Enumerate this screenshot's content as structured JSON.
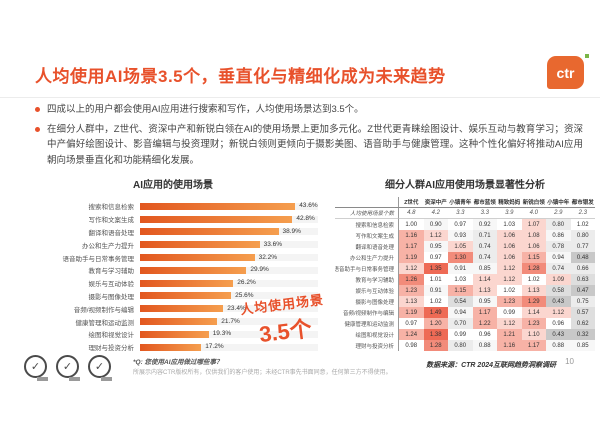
{
  "slide": {
    "title": "人均使用AI场景3.5个，垂直化与精细化成为未来趋势",
    "logo_text": "ctr",
    "page_number": "10",
    "accent_color": "#E8512B"
  },
  "bullets": {
    "item1": "四成以上的用户都会使用AI应用进行搜索和写作，人均使用场景达到3.5个。",
    "item2": "在细分人群中，Z世代、资深中产和新锐白领在AI的使用场景上更加多元化。Z世代更青睐绘图设计、娱乐互动与教育学习；资深中产偏好绘图设计、影音编辑与投资理财；新锐白领则更倾向于摄影美图、语音助手与健康管理。这种个性化偏好将推动AI应用朝向场景垂直化和功能精细化发展。"
  },
  "chart_data": [
    {
      "type": "bar",
      "title": "AI应用的使用场景",
      "orientation": "horizontal",
      "unit": "%",
      "xlim": [
        0,
        50
      ],
      "grid": false,
      "bar_color_start": "#E2571F",
      "bar_color_end": "#F59E4E",
      "categories": [
        "搜索和信息检索",
        "写作和文案生成",
        "翻译和语音处理",
        "办公和生产力提升",
        "语音助手与日常事务管理",
        "教育与学习辅助",
        "娱乐与互动体验",
        "摄影与图像处理",
        "音频/视频制作与编辑",
        "健康管理和运动监测",
        "绘图和视觉设计",
        "理财与投资分析"
      ],
      "values": [
        43.6,
        42.8,
        38.9,
        33.6,
        32.2,
        29.9,
        26.2,
        25.6,
        23.4,
        21.7,
        19.3,
        17.2
      ],
      "value_labels": [
        "43.6%",
        "42.8%",
        "38.9%",
        "33.6%",
        "32.2%",
        "29.9%",
        "26.2%",
        "25.6%",
        "23.4%",
        "21.7%",
        "19.3%",
        "17.2%"
      ],
      "annotation": {
        "line1": "人均使用场景",
        "line2": "3.5个"
      }
    },
    {
      "type": "heatmap",
      "title": "细分人群AI应用使用场景显著性分析",
      "columns": [
        "Z世代",
        "资深中产",
        "小镇青年",
        "都市蓝领",
        "精致妈妈",
        "新锐白领",
        "小镇中年",
        "都市银发"
      ],
      "rows": [
        {
          "label": "人均使用场景个数",
          "style": "plain",
          "values": [
            4.8,
            4.2,
            3.3,
            3.3,
            3.9,
            4.0,
            2.9,
            2.3
          ]
        },
        {
          "label": "搜索和信息检索",
          "values": [
            1.0,
            0.9,
            0.97,
            0.92,
            1.03,
            1.07,
            0.8,
            1.02
          ]
        },
        {
          "label": "写作和文案生成",
          "values": [
            1.16,
            1.12,
            0.93,
            0.71,
            1.06,
            1.08,
            0.86,
            0.8
          ]
        },
        {
          "label": "翻译和语音处理",
          "values": [
            1.17,
            0.95,
            1.05,
            0.74,
            1.06,
            1.06,
            0.78,
            0.77
          ]
        },
        {
          "label": "办公和生产力提升",
          "values": [
            1.19,
            0.97,
            1.3,
            0.74,
            1.06,
            1.15,
            0.94,
            0.48
          ]
        },
        {
          "label": "语音助手与日常事务管理",
          "values": [
            1.12,
            1.35,
            0.91,
            0.85,
            1.12,
            1.28,
            0.74,
            0.66
          ]
        },
        {
          "label": "教育与学习辅助",
          "values": [
            1.26,
            1.01,
            1.03,
            1.14,
            1.12,
            1.02,
            1.09,
            0.63
          ]
        },
        {
          "label": "娱乐与互动体验",
          "values": [
            1.23,
            0.91,
            1.15,
            1.13,
            1.02,
            1.13,
            0.58,
            0.47
          ]
        },
        {
          "label": "摄影与图像处理",
          "values": [
            1.13,
            1.02,
            0.54,
            0.95,
            1.23,
            1.29,
            0.43,
            0.75
          ]
        },
        {
          "label": "音频/视频制作与编辑",
          "values": [
            1.19,
            1.49,
            0.94,
            1.17,
            0.99,
            1.14,
            1.12,
            0.57
          ]
        },
        {
          "label": "健康管理和运动监测",
          "values": [
            0.97,
            1.2,
            0.7,
            1.22,
            1.12,
            1.23,
            0.96,
            0.62
          ]
        },
        {
          "label": "绘图和视觉设计",
          "values": [
            1.24,
            1.38,
            0.99,
            0.96,
            1.21,
            1.1,
            0.43,
            0.32
          ]
        },
        {
          "label": "理财与投资分析",
          "values": [
            0.98,
            1.28,
            0.8,
            0.88,
            1.16,
            1.17,
            0.88,
            0.85
          ]
        }
      ]
    }
  ],
  "footer": {
    "badge_icon": "✓",
    "question_note": "*Q: 您使用AI应用做过哪些事？",
    "copyright": "所展示内容CTR版权所有，仅供我们的客户使用；未经CTR事先书面同意，任何第三方不得使用。",
    "data_source": "数据来源：CTR 2024互联网趋势洞察调研"
  }
}
